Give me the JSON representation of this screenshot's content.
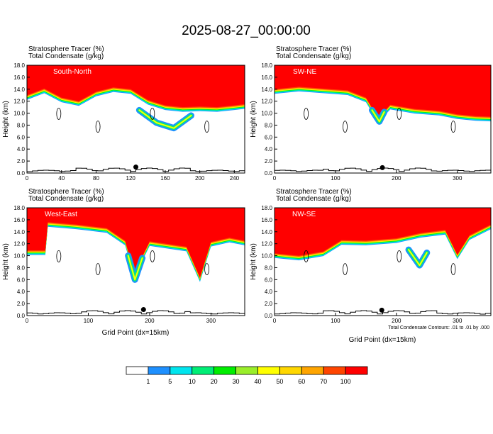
{
  "title": "2025-08-27_00:00:00",
  "colors": {
    "background": "#ffffff",
    "ink": "#000000",
    "terrain": "#000000"
  },
  "panel_header": {
    "line1": "Stratosphere Tracer   (%)",
    "line2": "Total Condensate   (g/kg)"
  },
  "y_axis_label": "Height (km)",
  "x_axis_label": "Grid Point (dx=15km)",
  "contour_note": "Total Condensate Contours: .01 to .01 by .000",
  "colorbar": {
    "levels": [
      "1",
      "5",
      "10",
      "20",
      "30",
      "40",
      "50",
      "60",
      "70",
      "100"
    ],
    "colors": [
      "#ffffff",
      "#1e90ff",
      "#00e5ee",
      "#00ee76",
      "#00ee00",
      "#9aee2a",
      "#ffff00",
      "#ffd700",
      "#ffa500",
      "#ff4500",
      "#ff0000"
    ]
  },
  "chart_data": [
    {
      "type": "heatmap",
      "label": "South-North",
      "x_ticks": [
        0,
        40,
        80,
        120,
        160,
        200,
        240
      ],
      "xlim": [
        0,
        252
      ],
      "y_ticks": [
        "0.0",
        "2.0",
        "4.0",
        "6.0",
        "8.0",
        "10.0",
        "12.0",
        "14.0",
        "16.0",
        "18.0"
      ],
      "ylim": [
        0,
        18
      ],
      "tracer_boundary_km": [
        [
          0,
          13.0
        ],
        [
          20,
          14.1
        ],
        [
          40,
          12.6
        ],
        [
          60,
          12.0
        ],
        [
          80,
          13.6
        ],
        [
          100,
          14.3
        ],
        [
          120,
          14.0
        ],
        [
          140,
          12.2
        ],
        [
          160,
          11.3
        ],
        [
          180,
          11.0
        ],
        [
          200,
          11.1
        ],
        [
          220,
          11.0
        ],
        [
          240,
          11.3
        ],
        [
          252,
          11.5
        ]
      ],
      "intrusion_tongue": [
        [
          130,
          10.5
        ],
        [
          150,
          8.4
        ],
        [
          170,
          7.5
        ],
        [
          190,
          9.6
        ]
      ],
      "station_marker": [
        126,
        1.0
      ]
    },
    {
      "type": "heatmap",
      "label": "SW-NE",
      "x_ticks": [
        0,
        100,
        200,
        300
      ],
      "xlim": [
        0,
        355
      ],
      "y_ticks": [
        "0.0",
        "2.0",
        "4.0",
        "6.0",
        "8.0",
        "10.0",
        "12.0",
        "14.0",
        "16.0",
        "18.0"
      ],
      "ylim": [
        0,
        18
      ],
      "tracer_boundary_km": [
        [
          0,
          14.0
        ],
        [
          40,
          14.4
        ],
        [
          80,
          14.1
        ],
        [
          120,
          13.8
        ],
        [
          150,
          12.6
        ],
        [
          170,
          9.2
        ],
        [
          190,
          11.4
        ],
        [
          230,
          10.7
        ],
        [
          270,
          10.4
        ],
        [
          300,
          9.8
        ],
        [
          330,
          9.5
        ],
        [
          355,
          9.4
        ]
      ],
      "intrusion_tongue": [
        [
          160,
          10.5
        ],
        [
          172,
          8.6
        ],
        [
          180,
          10.2
        ]
      ],
      "station_marker": [
        177,
        0.9
      ]
    },
    {
      "type": "heatmap",
      "label": "West-East",
      "x_ticks": [
        0,
        100,
        200,
        300
      ],
      "xlim": [
        0,
        355
      ],
      "y_ticks": [
        "0.0",
        "2.0",
        "4.0",
        "6.0",
        "8.0",
        "10.0",
        "12.0",
        "14.0",
        "16.0",
        "18.0"
      ],
      "ylim": [
        0,
        18
      ],
      "tracer_boundary_km": [
        [
          0,
          10.9
        ],
        [
          30,
          10.9
        ],
        [
          34,
          15.6
        ],
        [
          80,
          15.2
        ],
        [
          130,
          14.6
        ],
        [
          160,
          12.5
        ],
        [
          175,
          7.2
        ],
        [
          200,
          12.4
        ],
        [
          260,
          11.5
        ],
        [
          282,
          6.4
        ],
        [
          300,
          12.3
        ],
        [
          330,
          13.0
        ],
        [
          355,
          12.5
        ]
      ],
      "intrusion_tongue": [
        [
          165,
          10.0
        ],
        [
          176,
          6.0
        ],
        [
          188,
          9.6
        ]
      ],
      "station_marker": [
        190,
        1.0
      ]
    },
    {
      "type": "heatmap",
      "label": "NW-SE",
      "x_ticks": [
        0,
        100,
        200,
        300
      ],
      "xlim": [
        0,
        355
      ],
      "y_ticks": [
        "0.0",
        "2.0",
        "4.0",
        "6.0",
        "8.0",
        "10.0",
        "12.0",
        "14.0",
        "16.0",
        "18.0"
      ],
      "ylim": [
        0,
        18
      ],
      "tracer_boundary_km": [
        [
          0,
          10.4
        ],
        [
          40,
          10.0
        ],
        [
          80,
          10.7
        ],
        [
          110,
          12.6
        ],
        [
          150,
          12.5
        ],
        [
          200,
          12.9
        ],
        [
          240,
          13.8
        ],
        [
          280,
          14.3
        ],
        [
          300,
          10.2
        ],
        [
          320,
          13.4
        ],
        [
          355,
          15.2
        ]
      ],
      "intrusion_tongue": [
        [
          220,
          11.0
        ],
        [
          238,
          8.4
        ],
        [
          250,
          10.5
        ]
      ],
      "station_marker": [
        176,
        0.9
      ]
    }
  ]
}
